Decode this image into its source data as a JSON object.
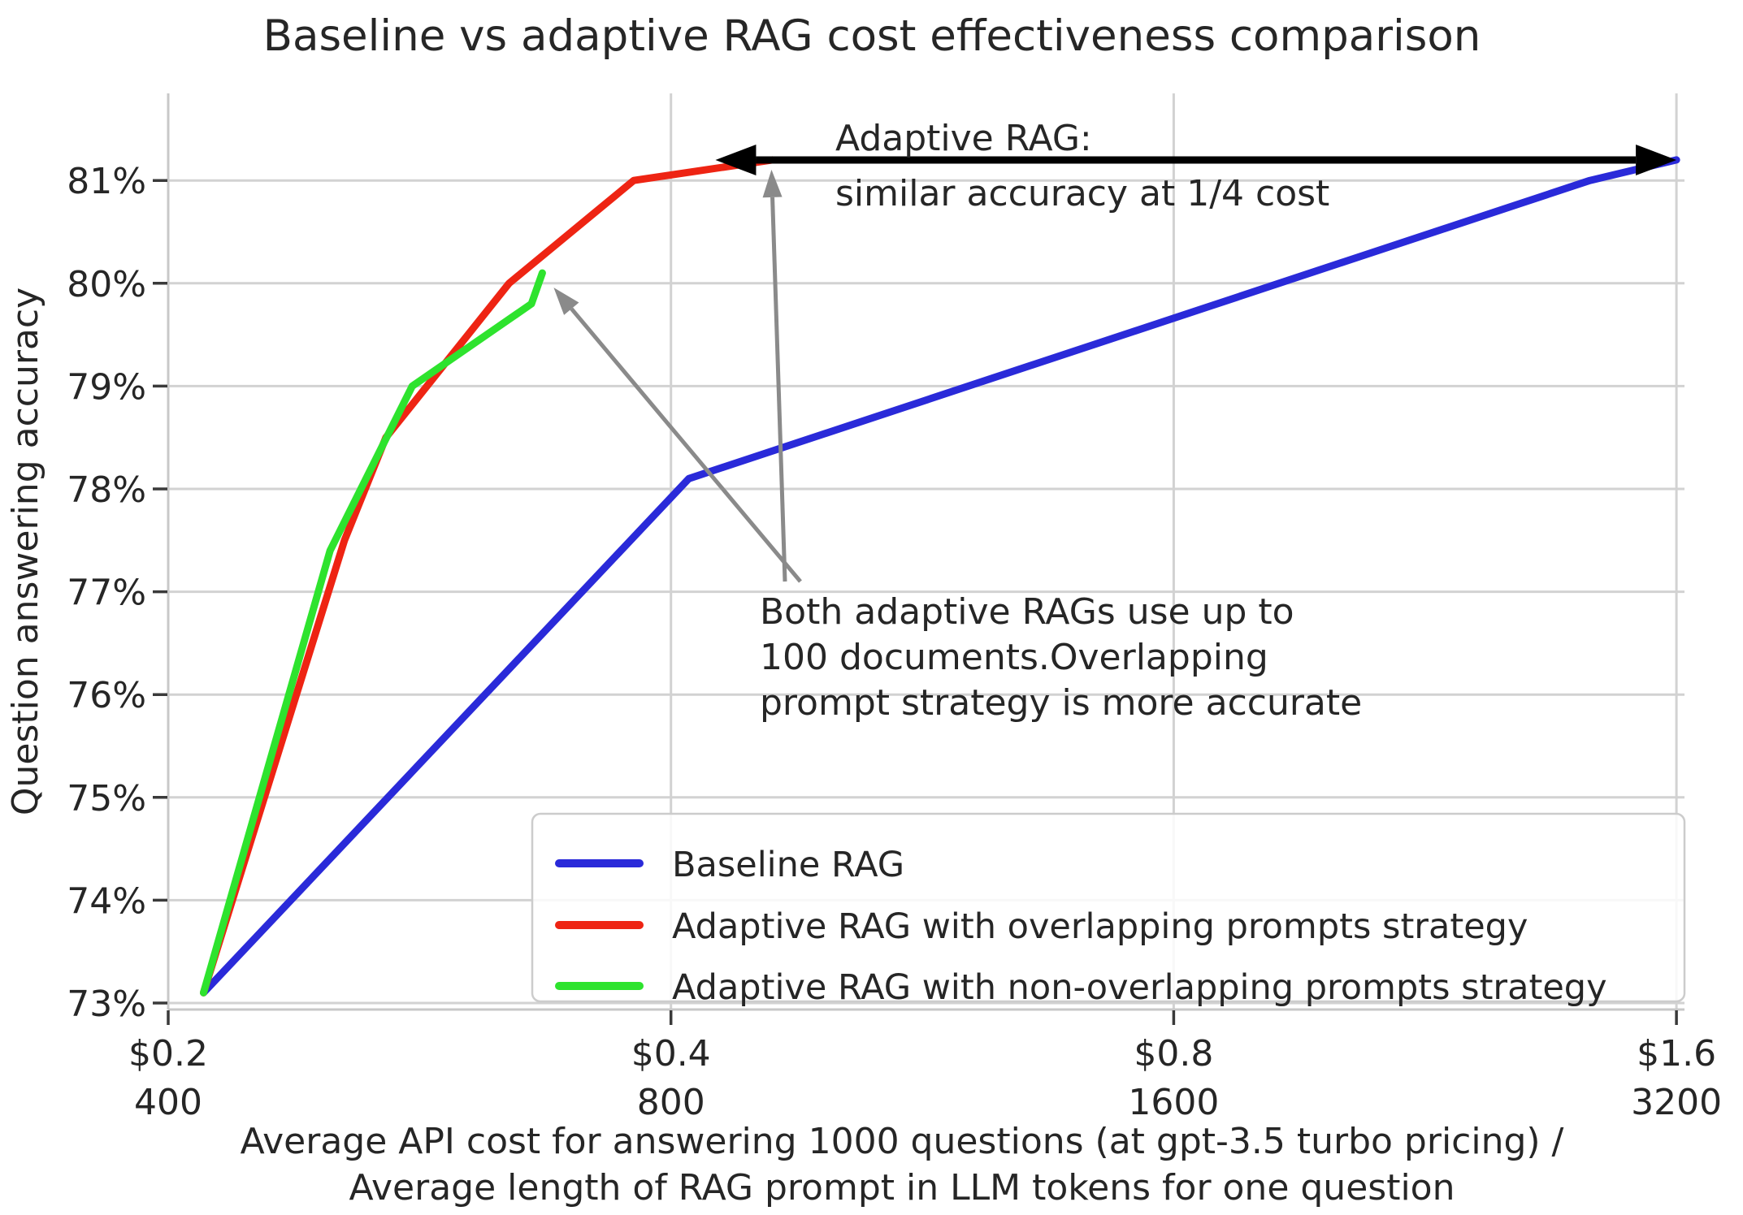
{
  "title": "Baseline vs adaptive RAG cost effectiveness comparison",
  "axes": {
    "y_label": "Question answering accuracy",
    "x_label_line1": "Average API cost for answering 1000 questions (at gpt-3.5 turbo pricing) /",
    "x_label_line2": "Average length of RAG prompt in LLM tokens for one question",
    "y_tick_labels": [
      "73%",
      "74%",
      "75%",
      "76%",
      "77%",
      "78%",
      "79%",
      "80%",
      "81%"
    ],
    "x_tick_labels": [
      {
        "cost": "$0.2",
        "tokens": "400"
      },
      {
        "cost": "$0.4",
        "tokens": "800"
      },
      {
        "cost": "$0.8",
        "tokens": "1600"
      },
      {
        "cost": "$1.6",
        "tokens": "3200"
      }
    ]
  },
  "annotations": {
    "cost_note": {
      "line1": "Adaptive RAG:",
      "line2": "similar accuracy at 1/4 cost"
    },
    "docs_note": {
      "line1": "Both adaptive RAGs use up to",
      "line2": "100 documents.Overlapping",
      "line3": "prompt strategy is more accurate"
    }
  },
  "legend": {
    "items": [
      {
        "label": "Baseline RAG",
        "color": "#2a2ad9"
      },
      {
        "label": "Adaptive RAG with overlapping prompts strategy",
        "color": "#ee2413"
      },
      {
        "label": "Adaptive RAG with non-overlapping prompts strategy",
        "color": "#2ee32e"
      }
    ]
  },
  "colors": {
    "grid": "#d2d2d2",
    "spine": "#c8c8c8",
    "tick_mark": "#3a3a3a",
    "text": "#262626",
    "black_arrow": "#000000",
    "gray_arrow": "#8a8a8a"
  },
  "chart_data": {
    "type": "line",
    "title": "Baseline vs adaptive RAG cost effectiveness comparison",
    "xlabel": "Average API cost for answering 1000 questions (at gpt-3.5 turbo pricing) / Average length of RAG prompt in LLM tokens for one question",
    "ylabel": "Question answering accuracy",
    "x_scale": "log2",
    "x_ticks_cost_dollars": [
      0.2,
      0.4,
      0.8,
      1.6
    ],
    "x_ticks_prompt_tokens": [
      400,
      800,
      1600,
      3200
    ],
    "xlim_cost": [
      0.2,
      1.613
    ],
    "ylim_percent": [
      72.9,
      81.85
    ],
    "y_ticks_percent": [
      73,
      74,
      75,
      76,
      77,
      78,
      79,
      80,
      81
    ],
    "grid": true,
    "legend_position": "lower right",
    "series": [
      {
        "name": "Baseline RAG",
        "color": "#2a2ad9",
        "points_cost_vs_accuracy": [
          [
            0.21,
            73.1
          ],
          [
            0.41,
            78.1
          ],
          [
            1.42,
            81.0
          ],
          [
            1.6,
            81.2
          ]
        ],
        "points_tokens": [
          420,
          820,
          2840,
          3200
        ]
      },
      {
        "name": "Adaptive RAG with overlapping prompts strategy",
        "color": "#ee2413",
        "points_cost_vs_accuracy": [
          [
            0.21,
            73.1
          ],
          [
            0.255,
            77.5
          ],
          [
            0.27,
            78.5
          ],
          [
            0.32,
            80.0
          ],
          [
            0.38,
            81.0
          ],
          [
            0.46,
            81.2
          ]
        ],
        "points_tokens": [
          420,
          510,
          540,
          640,
          760,
          920
        ]
      },
      {
        "name": "Adaptive RAG with non-overlapping prompts strategy",
        "color": "#2ee32e",
        "points_cost_vs_accuracy": [
          [
            0.21,
            73.1
          ],
          [
            0.25,
            77.4
          ],
          [
            0.28,
            79.0
          ],
          [
            0.33,
            79.8
          ],
          [
            0.335,
            80.1
          ]
        ],
        "points_tokens": [
          420,
          500,
          560,
          660,
          670
        ]
      }
    ]
  }
}
